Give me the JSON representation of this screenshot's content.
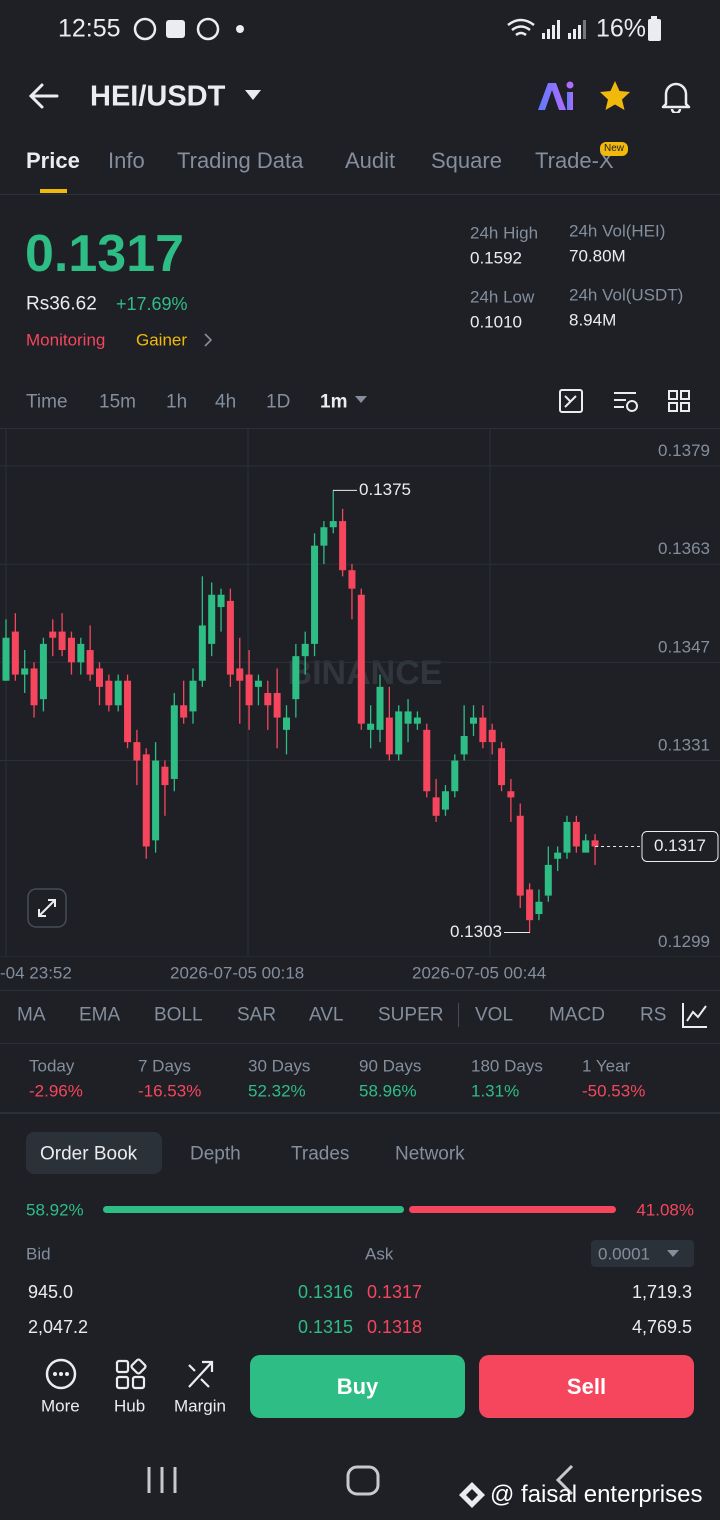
{
  "status": {
    "time": "12:55",
    "battery": "16%"
  },
  "header": {
    "pair": "HEI/USDT"
  },
  "tabs": {
    "items": [
      "Price",
      "Info",
      "Trading Data",
      "Audit",
      "Square",
      "Trade-X"
    ],
    "badge": "New"
  },
  "ticker": {
    "last": "0.1317",
    "fiat": "Rs36.62",
    "change": "+17.69%",
    "tags": [
      "Monitoring",
      "Gainer"
    ],
    "stats": [
      {
        "label": "24h High",
        "value": "0.1592"
      },
      {
        "label": "24h Vol(HEI)",
        "value": "70.80M"
      },
      {
        "label": "24h Low",
        "value": "0.1010"
      },
      {
        "label": "24h Vol(USDT)",
        "value": "8.94M"
      }
    ]
  },
  "intervals": [
    "Time",
    "15m",
    "1h",
    "4h",
    "1D",
    "1m"
  ],
  "chart": {
    "type": "candlestick",
    "watermark": "BINANCE",
    "up_color": "#2ebd85",
    "down_color": "#f6465d",
    "ylim": [
      0.1299,
      0.1385
    ],
    "yticks": [
      0.1379,
      0.1363,
      0.1347,
      0.1331,
      0.1299
    ],
    "x_labels": [
      "-04 23:52",
      "2026-07-05 00:18",
      "2026-07-05 00:44"
    ],
    "high_marker": 0.1375,
    "low_marker": 0.1303,
    "last_price": 0.1317,
    "open": [
      0.1344,
      0.1352,
      0.1345,
      0.1346,
      0.1341,
      0.1352,
      0.1352,
      0.1351,
      0.1347,
      0.1349,
      0.1346,
      0.1344,
      0.134,
      0.1344,
      0.1334,
      0.1332,
      0.1318,
      0.133,
      0.1328,
      0.134,
      0.1339,
      0.1344,
      0.135,
      0.1356,
      0.1357,
      0.1346,
      0.1345,
      0.1343,
      0.1342,
      0.1342,
      0.1336,
      0.1341,
      0.1348,
      0.135,
      0.1366,
      0.1369,
      0.137,
      0.1362,
      0.1358,
      0.1336,
      0.1336,
      0.1338,
      0.1332,
      0.1337,
      0.1337,
      0.1336,
      0.1325,
      0.1323,
      0.1326,
      0.1332,
      0.1337,
      0.1338,
      0.1336,
      0.1333,
      0.1326,
      0.1322,
      0.131,
      0.1306,
      0.1309,
      0.1315,
      0.1316,
      0.1321,
      0.1316,
      0.1318
    ],
    "high": [
      0.1354,
      0.1355,
      0.1349,
      0.1347,
      0.1351,
      0.1354,
      0.1355,
      0.1352,
      0.1351,
      0.1353,
      0.1347,
      0.1345,
      0.1345,
      0.1345,
      0.1336,
      0.1333,
      0.1334,
      0.1331,
      0.1342,
      0.1344,
      0.1346,
      0.1361,
      0.136,
      0.1359,
      0.1359,
      0.1351,
      0.1349,
      0.1345,
      0.1344,
      0.1346,
      0.134,
      0.135,
      0.1352,
      0.1368,
      0.137,
      0.1375,
      0.1372,
      0.1363,
      0.1359,
      0.134,
      0.1345,
      0.1343,
      0.134,
      0.1341,
      0.1339,
      0.1337,
      0.1328,
      0.1327,
      0.1332,
      0.134,
      0.134,
      0.134,
      0.1337,
      0.1334,
      0.1328,
      0.1324,
      0.1311,
      0.131,
      0.1317,
      0.1317,
      0.1322,
      0.1322,
      0.1319,
      0.1319
    ],
    "low": [
      0.1344,
      0.1344,
      0.1342,
      0.1338,
      0.1339,
      0.1348,
      0.1348,
      0.1345,
      0.1345,
      0.1344,
      0.134,
      0.1339,
      0.1339,
      0.1333,
      0.1327,
      0.1315,
      0.1316,
      0.1322,
      0.1326,
      0.1337,
      0.1337,
      0.1343,
      0.1348,
      0.1352,
      0.1343,
      0.1337,
      0.1336,
      0.134,
      0.1336,
      0.1333,
      0.1332,
      0.1338,
      0.1345,
      0.1348,
      0.1363,
      0.1368,
      0.1361,
      0.1354,
      0.1336,
      0.1333,
      0.1334,
      0.1331,
      0.1331,
      0.1334,
      0.1336,
      0.1325,
      0.1321,
      0.1322,
      0.1325,
      0.1331,
      0.1335,
      0.1333,
      0.1332,
      0.1326,
      0.1321,
      0.1307,
      0.1303,
      0.1305,
      0.1308,
      0.1313,
      0.1315,
      0.1316,
      0.1316,
      0.1314
    ],
    "close": [
      0.1351,
      0.1345,
      0.1346,
      0.134,
      0.135,
      0.1351,
      0.1349,
      0.1347,
      0.135,
      0.1345,
      0.1343,
      0.134,
      0.1344,
      0.1334,
      0.1331,
      0.1317,
      0.1331,
      0.1327,
      0.134,
      0.1338,
      0.1344,
      0.1353,
      0.1358,
      0.1358,
      0.1345,
      0.1344,
      0.134,
      0.1344,
      0.134,
      0.1338,
      0.1338,
      0.1348,
      0.135,
      0.1366,
      0.1369,
      0.137,
      0.1362,
      0.1359,
      0.1337,
      0.1337,
      0.1343,
      0.1332,
      0.1339,
      0.1339,
      0.1338,
      0.1326,
      0.1322,
      0.1326,
      0.1331,
      0.1335,
      0.1338,
      0.1334,
      0.1334,
      0.1327,
      0.1325,
      0.1309,
      0.1305,
      0.1308,
      0.1314,
      0.1316,
      0.1321,
      0.1317,
      0.1318,
      0.1317
    ]
  },
  "indicators": [
    "MA",
    "EMA",
    "BOLL",
    "SAR",
    "AVL",
    "SUPER",
    "VOL",
    "MACD",
    "RSI"
  ],
  "performance": [
    {
      "label": "Today",
      "value": "-2.96%"
    },
    {
      "label": "7 Days",
      "value": "-16.53%"
    },
    {
      "label": "30 Days",
      "value": "52.32%"
    },
    {
      "label": "90 Days",
      "value": "58.96%"
    },
    {
      "label": "180 Days",
      "value": "1.31%"
    },
    {
      "label": "1 Year",
      "value": "-50.53%"
    }
  ],
  "order_book": {
    "tabs": [
      "Order Book",
      "Depth",
      "Trades",
      "Network"
    ],
    "bid_ratio": {
      "value": 58.92,
      "label": "58.92%"
    },
    "ask_ratio": {
      "value": 41.08,
      "label": "41.08%"
    },
    "bid_header": "Bid",
    "ask_header": "Ask",
    "precision": "0.0001",
    "rows": [
      [
        "945.0",
        "0.1316",
        "0.1317",
        "1,719.3"
      ],
      [
        "2,047.2",
        "0.1315",
        "0.1318",
        "4,769.5"
      ]
    ]
  },
  "bottom_bar": {
    "items": [
      "More",
      "Hub",
      "Margin"
    ],
    "buy": "Buy",
    "sell": "Sell"
  },
  "watermark": "@ faisal enterprises"
}
